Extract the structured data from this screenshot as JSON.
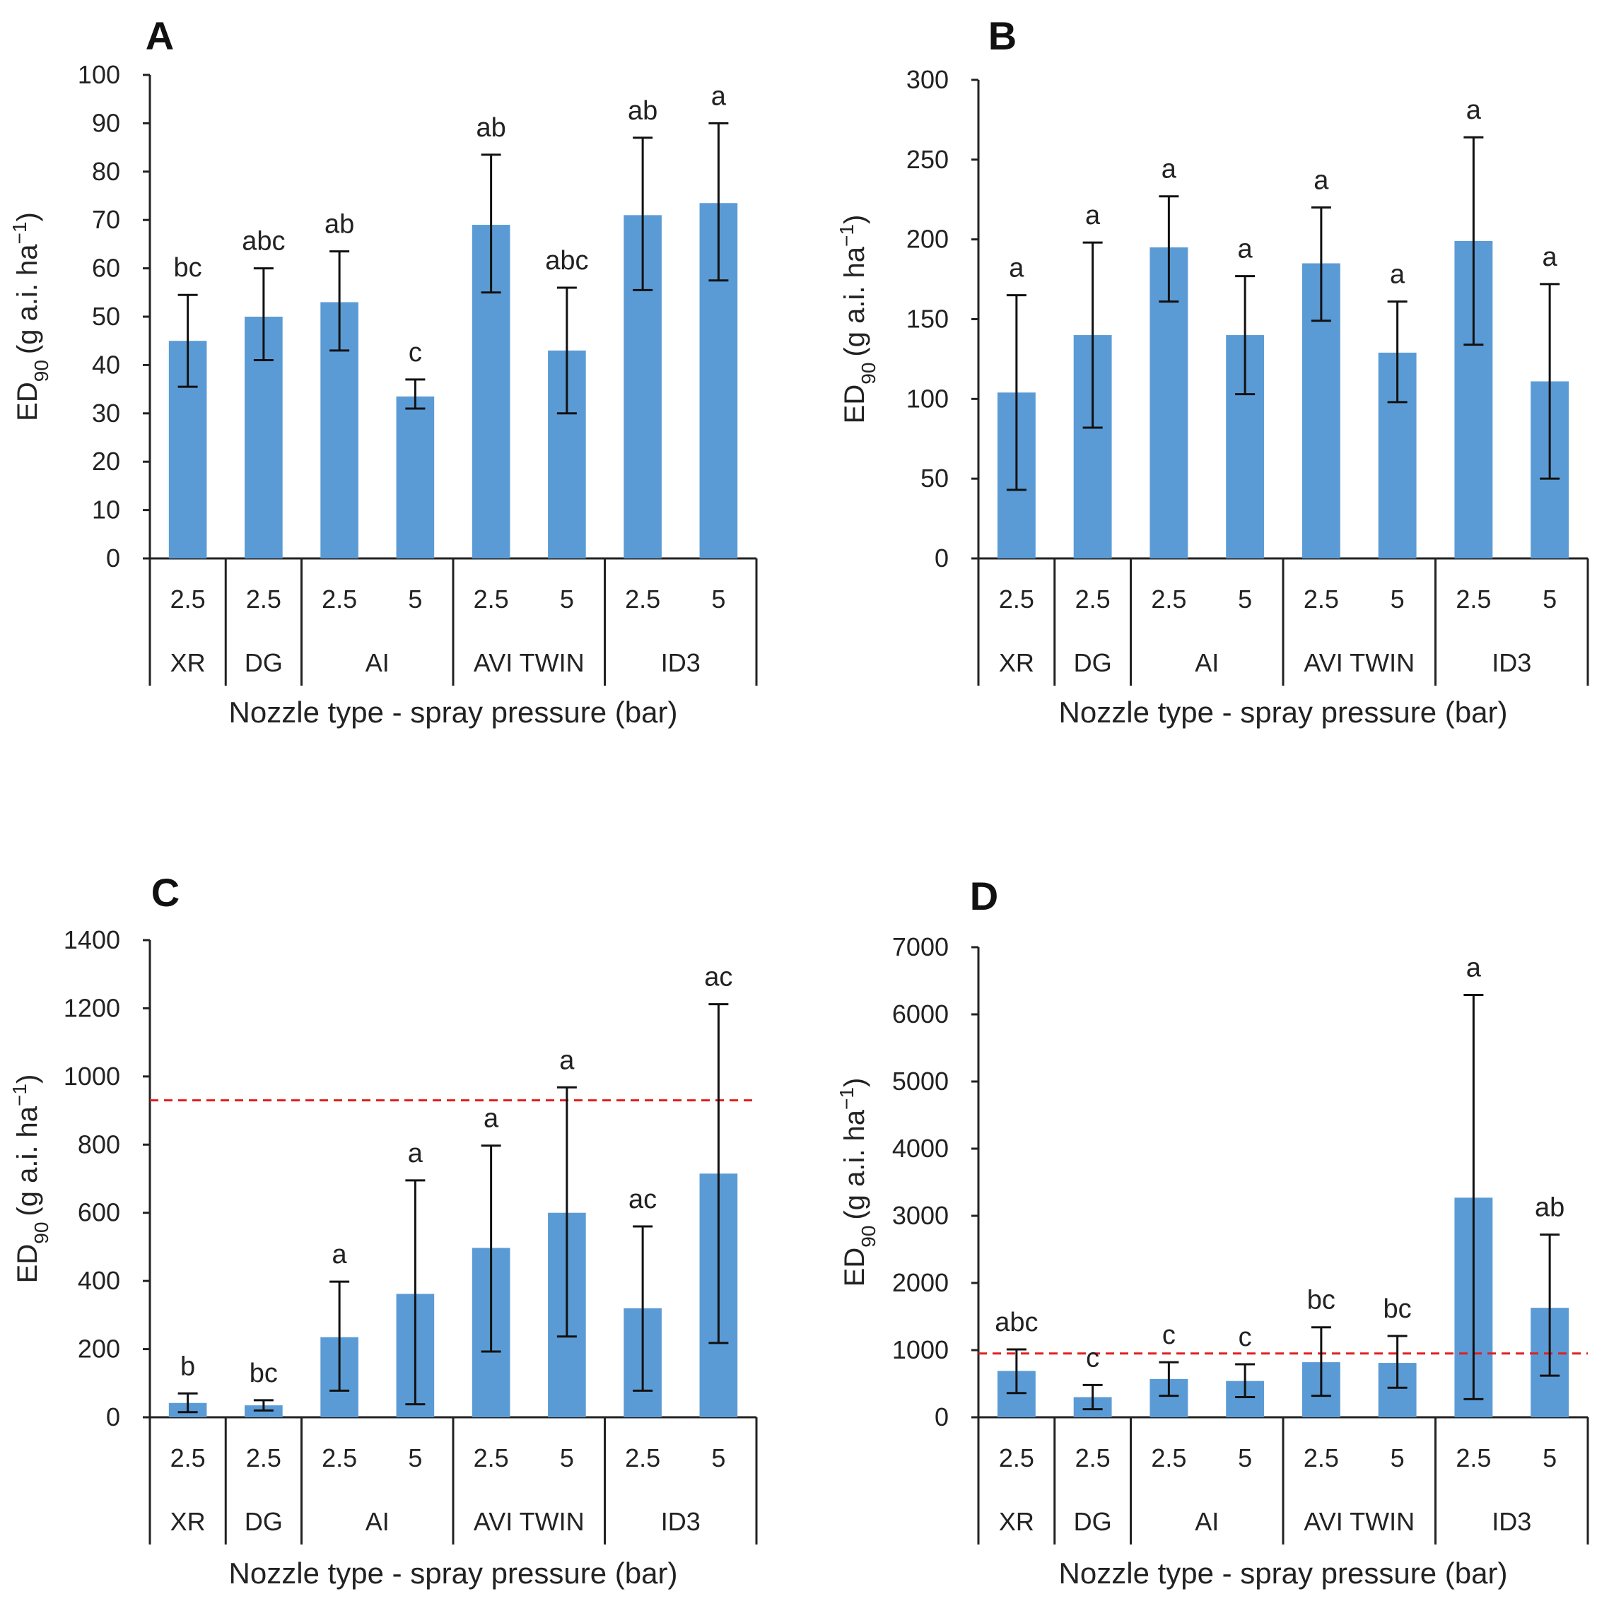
{
  "chart_data": [
    {
      "panel": "A",
      "type": "bar",
      "title": "",
      "xlabel": "Nozzle type - spray pressure (bar)",
      "ylabel": "ED90 (g a.i. ha-1)",
      "ylim": [
        0,
        100
      ],
      "yticks": [
        0,
        10,
        20,
        30,
        40,
        50,
        60,
        70,
        80,
        90,
        100
      ],
      "pressures": [
        "2.5",
        "2.5",
        "2.5",
        "5",
        "2.5",
        "5",
        "2.5",
        "5"
      ],
      "groups": [
        {
          "name": "XR",
          "count": 1
        },
        {
          "name": "DG",
          "count": 1
        },
        {
          "name": "AI",
          "count": 2
        },
        {
          "name": "AVI TWIN",
          "count": 2
        },
        {
          "name": "ID3",
          "count": 2
        }
      ],
      "values": [
        45,
        50,
        53,
        33.5,
        69,
        43,
        71,
        73.5
      ],
      "err_low": [
        35.5,
        41,
        43,
        31,
        55,
        30,
        55.5,
        57.5
      ],
      "err_high": [
        54.5,
        60,
        63.5,
        37,
        83.5,
        56,
        87,
        90
      ],
      "letters": [
        "bc",
        "abc",
        "ab",
        "c",
        "ab",
        "abc",
        "ab",
        "a"
      ],
      "reference_line": null
    },
    {
      "panel": "B",
      "type": "bar",
      "title": "",
      "xlabel": "Nozzle type - spray pressure (bar)",
      "ylabel": "ED90 (g a.i. ha-1)",
      "ylim": [
        0,
        300
      ],
      "yticks": [
        0,
        50,
        100,
        150,
        200,
        250,
        300
      ],
      "pressures": [
        "2.5",
        "2.5",
        "2.5",
        "5",
        "2.5",
        "5",
        "2.5",
        "5"
      ],
      "groups": [
        {
          "name": "XR",
          "count": 1
        },
        {
          "name": "DG",
          "count": 1
        },
        {
          "name": "AI",
          "count": 2
        },
        {
          "name": "AVI TWIN",
          "count": 2
        },
        {
          "name": "ID3",
          "count": 2
        }
      ],
      "values": [
        104,
        140,
        195,
        140,
        185,
        129,
        199,
        111
      ],
      "err_low": [
        43,
        82,
        161,
        103,
        149,
        98,
        134,
        50
      ],
      "err_high": [
        165,
        198,
        227,
        177,
        220,
        161,
        264,
        172
      ],
      "letters": [
        "a",
        "a",
        "a",
        "a",
        "a",
        "a",
        "a",
        "a"
      ],
      "reference_line": null
    },
    {
      "panel": "C",
      "type": "bar",
      "title": "",
      "xlabel": "Nozzle type - spray pressure (bar)",
      "ylabel": "ED90 (g a.i. ha-1)",
      "ylim": [
        0,
        1400
      ],
      "yticks": [
        0,
        200,
        400,
        600,
        800,
        1000,
        1200,
        1400
      ],
      "pressures": [
        "2.5",
        "2.5",
        "2.5",
        "5",
        "2.5",
        "5",
        "2.5",
        "5"
      ],
      "groups": [
        {
          "name": "XR",
          "count": 1
        },
        {
          "name": "DG",
          "count": 1
        },
        {
          "name": "AI",
          "count": 2
        },
        {
          "name": "AVI TWIN",
          "count": 2
        },
        {
          "name": "ID3",
          "count": 2
        }
      ],
      "values": [
        42,
        35,
        235,
        362,
        497,
        600,
        320,
        715
      ],
      "err_low": [
        15,
        20,
        78,
        38,
        193,
        237,
        78,
        218
      ],
      "err_high": [
        70,
        50,
        398,
        695,
        797,
        968,
        560,
        1212
      ],
      "letters": [
        "b",
        "bc",
        "a",
        "a",
        "a",
        "a",
        "ac",
        "ac"
      ],
      "reference_line": 930
    },
    {
      "panel": "D",
      "type": "bar",
      "title": "",
      "xlabel": "Nozzle type - spray pressure (bar)",
      "ylabel": "ED90 (g a.i. ha-1)",
      "ylim": [
        0,
        7000
      ],
      "yticks": [
        0,
        1000,
        2000,
        3000,
        4000,
        5000,
        6000,
        7000
      ],
      "pressures": [
        "2.5",
        "2.5",
        "2.5",
        "5",
        "2.5",
        "5",
        "2.5",
        "5"
      ],
      "groups": [
        {
          "name": "XR",
          "count": 1
        },
        {
          "name": "DG",
          "count": 1
        },
        {
          "name": "AI",
          "count": 2
        },
        {
          "name": "AVI TWIN",
          "count": 2
        },
        {
          "name": "ID3",
          "count": 2
        }
      ],
      "values": [
        690,
        300,
        570,
        540,
        820,
        810,
        3270,
        1630
      ],
      "err_low": [
        360,
        120,
        320,
        300,
        320,
        440,
        270,
        620
      ],
      "err_high": [
        1010,
        480,
        820,
        790,
        1340,
        1210,
        6290,
        2720
      ],
      "letters": [
        "abc",
        "c",
        "c",
        "c",
        "bc",
        "bc",
        "a",
        "ab"
      ],
      "reference_line": 950
    }
  ],
  "colors": {
    "bar": "#5b9bd5",
    "reference_line": "#e02020",
    "axis": "#222222"
  }
}
